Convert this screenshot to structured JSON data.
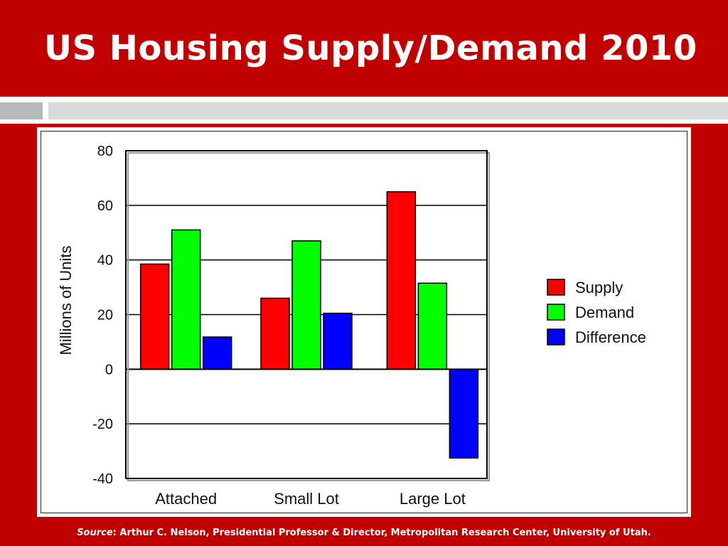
{
  "slide": {
    "title": "US Housing Supply/Demand 2010"
  },
  "source": {
    "label": "Source",
    "text": ": Arthur C. Nelson, Presidential Professor & Director, Metropolitan Research Center, University of Utah."
  },
  "colors": {
    "background": "#c00000",
    "supply": "#ff0000",
    "demand": "#00ff00",
    "difference": "#0000ff"
  },
  "chart_data": {
    "type": "bar",
    "title": "",
    "xlabel": "",
    "ylabel": "Millions of Units",
    "ylim": [
      -40,
      80
    ],
    "yticks": [
      80,
      60,
      40,
      20,
      0,
      -20,
      -40
    ],
    "grid": true,
    "legend_position": "right",
    "categories": [
      "Attached",
      "Small Lot",
      "Large Lot"
    ],
    "series": [
      {
        "name": "Supply",
        "color": "#ff0000",
        "values": [
          38.5,
          26,
          65
        ]
      },
      {
        "name": "Demand",
        "color": "#00ff00",
        "values": [
          51,
          47,
          31.5
        ]
      },
      {
        "name": "Difference",
        "color": "#0000ff",
        "values": [
          11.8,
          20.5,
          -32.5
        ]
      }
    ]
  }
}
